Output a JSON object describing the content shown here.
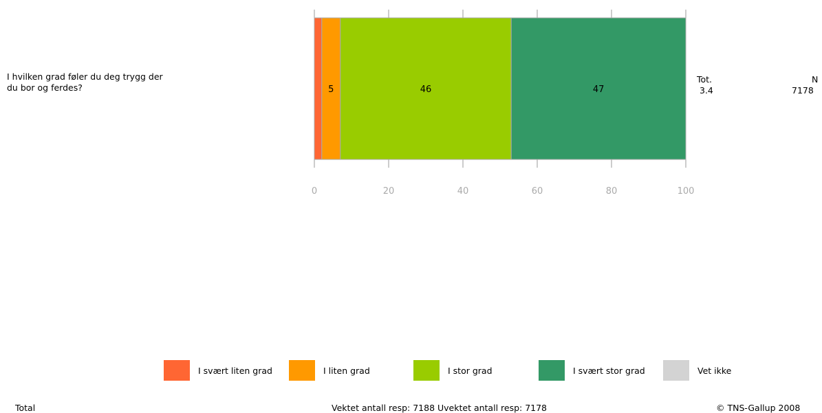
{
  "question": "I hvilken grad føler du deg trygg der\ndu bor og ferdes?",
  "stats": {
    "tot_label": "Tot.",
    "tot_value": "3.4",
    "n_label": "N",
    "n_value": "7178"
  },
  "chart_data": {
    "type": "bar",
    "orientation": "horizontal",
    "stacked": true,
    "categories": [
      "I hvilken grad føler du deg trygg der du bor og ferdes?"
    ],
    "series": [
      {
        "name": "I svært liten grad",
        "values": [
          2
        ],
        "color": "#ff6633",
        "label": ""
      },
      {
        "name": "I liten grad",
        "values": [
          5
        ],
        "color": "#ff9900",
        "label": "5"
      },
      {
        "name": "I stor grad",
        "values": [
          46
        ],
        "color": "#99cc00",
        "label": "46"
      },
      {
        "name": "I svært stor grad",
        "values": [
          47
        ],
        "color": "#339966",
        "label": "47"
      },
      {
        "name": "Vet ikke",
        "values": [
          0
        ],
        "color": "#d3d3d3",
        "label": ""
      }
    ],
    "xlim": [
      0,
      100
    ],
    "xticks": [
      "0",
      "20",
      "40",
      "60",
      "80",
      "100"
    ],
    "grid": false
  },
  "legend": [
    {
      "label": "I svært liten grad",
      "color": "#ff6633"
    },
    {
      "label": "I liten grad",
      "color": "#ff9900"
    },
    {
      "label": "I stor grad",
      "color": "#99cc00"
    },
    {
      "label": "I svært stor grad",
      "color": "#339966"
    },
    {
      "label": "Vet ikke",
      "color": "#d3d3d3"
    }
  ],
  "footer": {
    "left": "Total",
    "center": "Vektet antall resp: 7188  Uvektet antall resp: 7178",
    "right": "© TNS-Gallup 2008"
  }
}
